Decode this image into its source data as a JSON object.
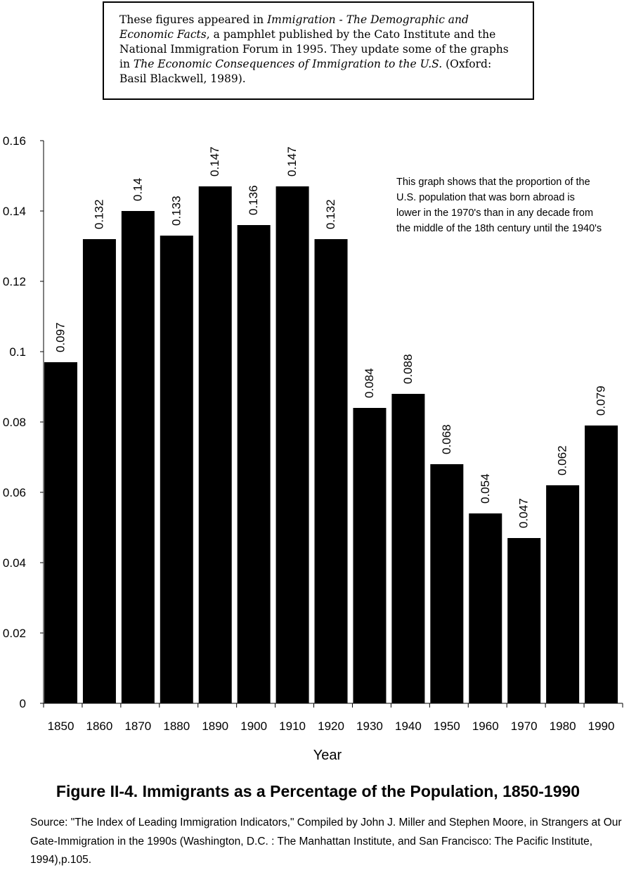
{
  "note": {
    "t1": "These figures appeared in ",
    "i1": "Immigration - The Demographic and Economic Facts",
    "t2": ", a pamphlet published by the Cato Institute and the National Immigration Forum in 1995. They update some of the graphs in ",
    "i2": "The Economic Consequences of Immigration to the U.S.",
    "t3": " (Oxford: Basil Blackwell, 1989)."
  },
  "chart_data": {
    "type": "bar",
    "categories": [
      "1850",
      "1860",
      "1870",
      "1880",
      "1890",
      "1900",
      "1910",
      "1920",
      "1930",
      "1940",
      "1950",
      "1960",
      "1970",
      "1980",
      "1990"
    ],
    "values": [
      0.097,
      0.132,
      0.14,
      0.133,
      0.147,
      0.136,
      0.147,
      0.132,
      0.084,
      0.088,
      0.068,
      0.054,
      0.047,
      0.062,
      0.079
    ],
    "data_labels": [
      "0.097",
      "0.132",
      "0.14",
      "0.133",
      "0.147",
      "0.136",
      "0.147",
      "0.132",
      "0.084",
      "0.088",
      "0.068",
      "0.054",
      "0.047",
      "0.062",
      "0.079"
    ],
    "yticks": [
      "0",
      "0.02",
      "0.04",
      "0.06",
      "0.08",
      "0.1",
      "0.12",
      "0.14",
      "0.16"
    ],
    "ylim": [
      0,
      0.16
    ],
    "xlabel": "Year",
    "ylabel": "",
    "bar_color": "#000000",
    "annotation": [
      "This graph shows that the proportion of the",
      "U.S. population that was born abroad is",
      "lower in the 1970's than in any decade from",
      "the middle of the 18th century until the 1940's"
    ]
  },
  "figure_title": "Figure II-4. Immigrants as a Percentage of the Population, 1850-1990",
  "source": "Source:  \"The Index of Leading Immigration Indicators,\" Compiled by John J. Miller and Stephen Moore, in Strangers at Our Gate-Immigration in the 1990s (Washington, D.C. : The Manhattan Institute, and San Francisco: The Pacific Institute, 1994),p.105."
}
